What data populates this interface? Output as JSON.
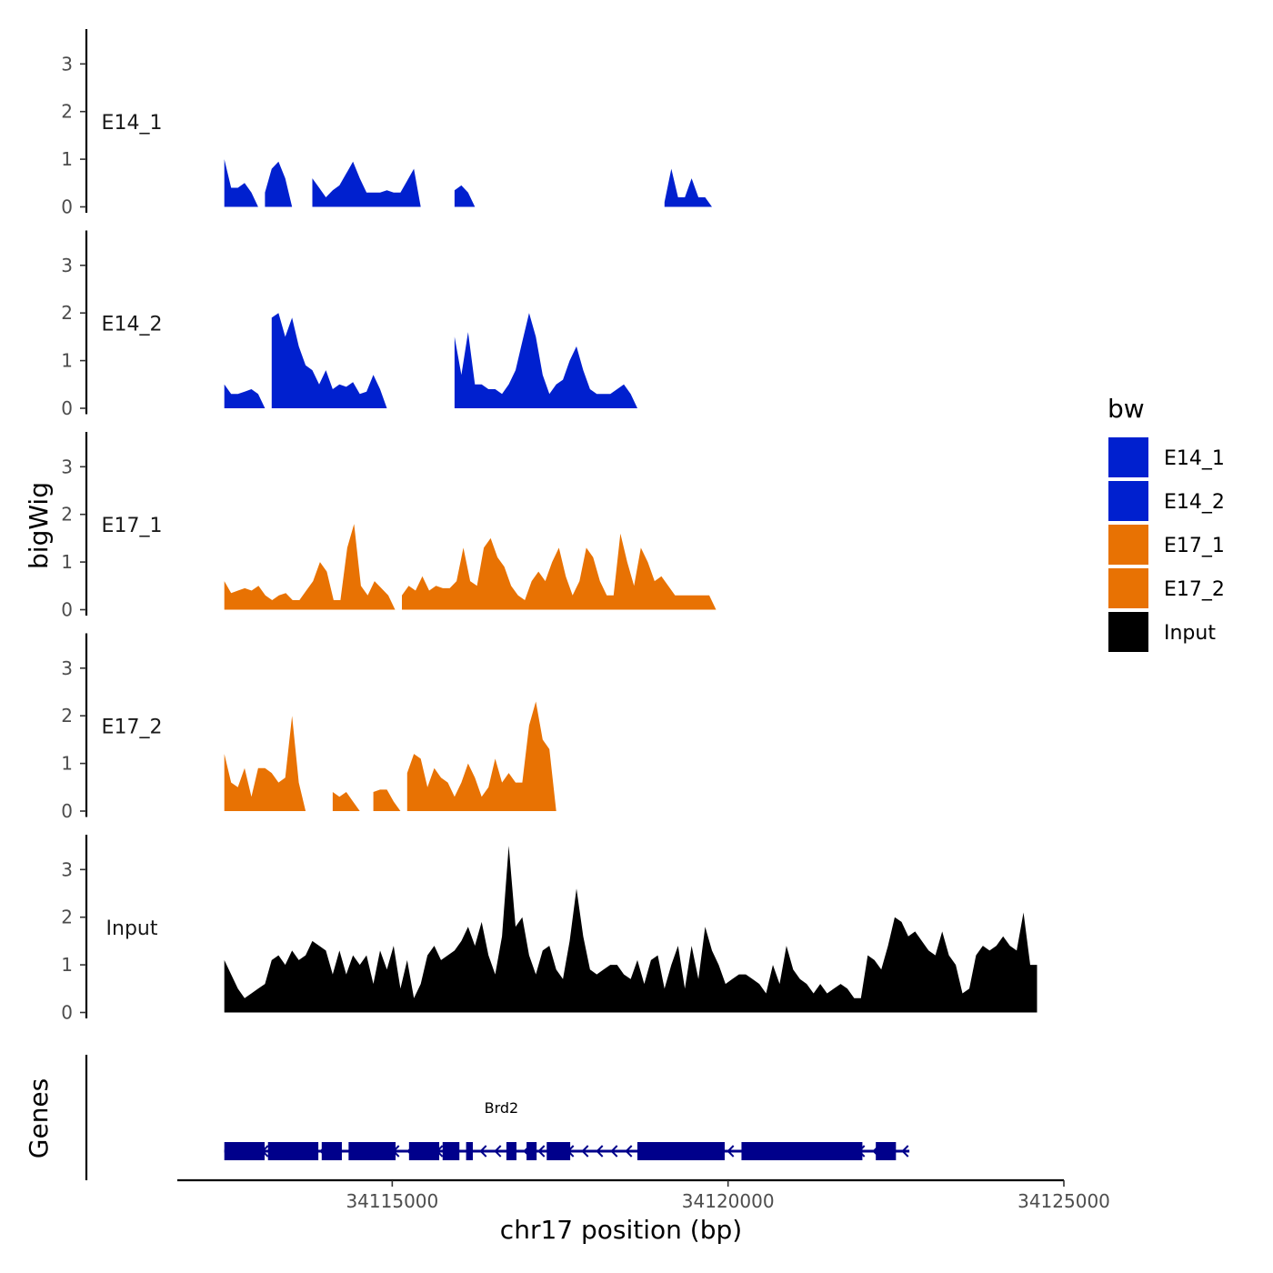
{
  "chart_data": {
    "type": "area",
    "y_axis_title": "bigWig",
    "genes_axis_title": "Genes",
    "x_axis_title": "chr17 position (bp)",
    "x_range": [
      34111800,
      34125000
    ],
    "data_x_extent": [
      34112500,
      34124600
    ],
    "x_ticks": [
      34115000,
      34120000,
      34125000
    ],
    "x_tick_labels": [
      "34115000",
      "34120000",
      "34125000"
    ],
    "y_range": [
      0,
      3.8
    ],
    "y_ticks": [
      0,
      1,
      2,
      3
    ],
    "y_tick_labels": [
      "0",
      "1",
      "2",
      "3"
    ],
    "legend": {
      "title": "bw",
      "entries": [
        {
          "label": "E14_1",
          "color": "#0020CF"
        },
        {
          "label": "E14_2",
          "color": "#0020CF"
        },
        {
          "label": "E17_1",
          "color": "#E87203"
        },
        {
          "label": "E17_2",
          "color": "#E87203"
        },
        {
          "label": "Input",
          "color": "#000000"
        }
      ]
    },
    "tracks": [
      {
        "name": "E14_1",
        "color": "#0020CF",
        "resolution_bp": 100,
        "values": [
          1.0,
          0.4,
          0.4,
          0.5,
          0.3,
          0.0,
          0.3,
          0.8,
          0.95,
          0.6,
          0.0,
          0.0,
          0.0,
          0.6,
          0.4,
          0.2,
          0.35,
          0.45,
          0.7,
          0.95,
          0.6,
          0.3,
          0.3,
          0.3,
          0.35,
          0.3,
          0.3,
          0.55,
          0.8,
          0.0,
          0.0,
          0.0,
          0.0,
          0.0,
          0.35,
          0.45,
          0.3,
          0.0,
          0.0,
          0.0,
          0.0,
          0.0,
          0.0,
          0.0,
          0.0,
          0.0,
          0.0,
          0.0,
          0.0,
          0.0,
          0.0,
          0.0,
          0.0,
          0.0,
          0.0,
          0.0,
          0.0,
          0.0,
          0.0,
          0.0,
          0.0,
          0.0,
          0.0,
          0.0,
          0.0,
          0.1,
          0.8,
          0.2,
          0.2,
          0.6,
          0.2,
          0.2,
          0.0,
          0.0,
          0.0,
          0.0,
          0.0,
          0.0,
          0.0,
          0.0,
          0.0,
          0.0,
          0.0,
          0.0,
          0.0,
          0.0,
          0.0,
          0.0,
          0.0,
          0.0,
          0.0,
          0.0,
          0.0,
          0.0,
          0.0,
          0.0,
          0.0,
          0.0,
          0.0,
          0.0,
          0.0,
          0.0,
          0.0,
          0.0,
          0.0,
          0.0,
          0.0,
          0.0,
          0.0,
          0.0,
          0.0,
          0.0,
          0.0,
          0.0,
          0.0,
          0.0,
          0.0,
          0.0,
          0.0,
          0.0,
          0.0
        ]
      },
      {
        "name": "E14_2",
        "color": "#0020CF",
        "resolution_bp": 100,
        "values": [
          0.5,
          0.3,
          0.3,
          0.35,
          0.4,
          0.3,
          0.0,
          1.9,
          2.0,
          1.5,
          1.9,
          1.3,
          0.9,
          0.8,
          0.5,
          0.8,
          0.4,
          0.5,
          0.45,
          0.55,
          0.3,
          0.35,
          0.7,
          0.4,
          0.0,
          0.0,
          0.0,
          0.0,
          0.0,
          0.0,
          0.0,
          0.0,
          0.0,
          0.0,
          1.5,
          0.7,
          1.6,
          0.5,
          0.5,
          0.4,
          0.4,
          0.3,
          0.5,
          0.8,
          1.4,
          2.0,
          1.5,
          0.7,
          0.3,
          0.5,
          0.6,
          1.0,
          1.3,
          0.8,
          0.4,
          0.3,
          0.3,
          0.3,
          0.4,
          0.5,
          0.3,
          0.0,
          0.0,
          0.0,
          0.0,
          0.0,
          0.0,
          0.0,
          0.0,
          0.0,
          0.0,
          0.0,
          0.0,
          0.0,
          0.0,
          0.0,
          0.0,
          0.0,
          0.0,
          0.0,
          0.0,
          0.0,
          0.0,
          0.0,
          0.0,
          0.0,
          0.0,
          0.0,
          0.0,
          0.0,
          0.0,
          0.0,
          0.0,
          0.0,
          0.0,
          0.0,
          0.0,
          0.0,
          0.0,
          0.0,
          0.0,
          0.0,
          0.0,
          0.0,
          0.0,
          0.0,
          0.0,
          0.0,
          0.0,
          0.0,
          0.0,
          0.0,
          0.0,
          0.0,
          0.0,
          0.0,
          0.0,
          0.0,
          0.0,
          0.0,
          0.0
        ]
      },
      {
        "name": "E17_1",
        "color": "#E87203",
        "resolution_bp": 100,
        "values": [
          0.6,
          0.35,
          0.4,
          0.45,
          0.4,
          0.5,
          0.3,
          0.2,
          0.3,
          0.35,
          0.2,
          0.2,
          0.4,
          0.6,
          1.0,
          0.8,
          0.2,
          0.2,
          1.3,
          1.8,
          0.5,
          0.3,
          0.6,
          0.45,
          0.3,
          0.0,
          0.3,
          0.5,
          0.4,
          0.7,
          0.4,
          0.5,
          0.45,
          0.45,
          0.6,
          1.3,
          0.6,
          0.5,
          1.3,
          1.5,
          1.1,
          0.9,
          0.5,
          0.3,
          0.2,
          0.6,
          0.8,
          0.6,
          1.0,
          1.3,
          0.7,
          0.3,
          0.6,
          1.3,
          1.1,
          0.6,
          0.3,
          0.3,
          1.6,
          1.0,
          0.5,
          1.3,
          1.0,
          0.6,
          0.7,
          0.5,
          0.3,
          0.3,
          0.3,
          0.3,
          0.3,
          0.3,
          0.0,
          0.0,
          0.0,
          0.0,
          0.0,
          0.0,
          0.0,
          0.0,
          0.0,
          0.0,
          0.0,
          0.0,
          0.0,
          0.0,
          0.0,
          0.0,
          0.0,
          0.0,
          0.0,
          0.0,
          0.0,
          0.0,
          0.0,
          0.0,
          0.0,
          0.0,
          0.0,
          0.0,
          0.0,
          0.0,
          0.0,
          0.0,
          0.0,
          0.0,
          0.0,
          0.0,
          0.0,
          0.0,
          0.0,
          0.0,
          0.0,
          0.0,
          0.0,
          0.0,
          0.0,
          0.0,
          0.0,
          0.0
        ]
      },
      {
        "name": "E17_2",
        "color": "#E87203",
        "resolution_bp": 100,
        "values": [
          1.2,
          0.6,
          0.5,
          0.9,
          0.3,
          0.9,
          0.9,
          0.8,
          0.6,
          0.7,
          2.0,
          0.6,
          0.0,
          0.0,
          0.0,
          0.0,
          0.4,
          0.3,
          0.4,
          0.2,
          0.0,
          0.0,
          0.4,
          0.45,
          0.45,
          0.2,
          0.0,
          0.8,
          1.2,
          1.1,
          0.5,
          0.9,
          0.7,
          0.6,
          0.3,
          0.6,
          1.0,
          0.7,
          0.3,
          0.5,
          1.1,
          0.6,
          0.8,
          0.6,
          0.6,
          1.8,
          2.3,
          1.5,
          1.3,
          0.0,
          0.0,
          0.0,
          0.0,
          0.0,
          0.0,
          0.0,
          0.0,
          0.0,
          0.0,
          0.0,
          0.0,
          0.0,
          0.0,
          0.0,
          0.0,
          0.0,
          0.0,
          0.0,
          0.0,
          0.0,
          0.0,
          0.0,
          0.0,
          0.0,
          0.0,
          0.0,
          0.0,
          0.0,
          0.0,
          0.0,
          0.0,
          0.0,
          0.0,
          0.0,
          0.0,
          0.0,
          0.0,
          0.0,
          0.0,
          0.0,
          0.0,
          0.0,
          0.0,
          0.0,
          0.0,
          0.0,
          0.0,
          0.0,
          0.0,
          0.0,
          0.0,
          0.0,
          0.0,
          0.0,
          0.0,
          0.0,
          0.0,
          0.0,
          0.0,
          0.0,
          0.0,
          0.0,
          0.0,
          0.0,
          0.0,
          0.0,
          0.0,
          0.0,
          0.0,
          0.0,
          0.0
        ]
      },
      {
        "name": "Input",
        "color": "#000000",
        "resolution_bp": 100,
        "values": [
          1.1,
          0.8,
          0.5,
          0.3,
          0.4,
          0.5,
          0.6,
          1.1,
          1.2,
          1.0,
          1.3,
          1.1,
          1.2,
          1.5,
          1.4,
          1.3,
          0.8,
          1.3,
          0.8,
          1.2,
          1.0,
          1.2,
          0.6,
          1.3,
          0.9,
          1.4,
          0.5,
          1.1,
          0.3,
          0.6,
          1.2,
          1.4,
          1.1,
          1.2,
          1.3,
          1.5,
          1.8,
          1.4,
          1.9,
          1.2,
          0.8,
          1.6,
          3.5,
          1.8,
          2.0,
          1.2,
          0.8,
          1.3,
          1.4,
          0.9,
          0.7,
          1.5,
          2.6,
          1.6,
          0.9,
          0.8,
          0.9,
          1.0,
          1.0,
          0.8,
          0.7,
          1.1,
          0.6,
          1.1,
          1.2,
          0.5,
          1.0,
          1.4,
          0.5,
          1.4,
          0.7,
          1.8,
          1.3,
          1.0,
          0.6,
          0.7,
          0.8,
          0.8,
          0.7,
          0.6,
          0.4,
          1.0,
          0.6,
          1.4,
          0.9,
          0.7,
          0.6,
          0.4,
          0.6,
          0.4,
          0.5,
          0.6,
          0.5,
          0.3,
          0.3,
          1.2,
          1.1,
          0.9,
          1.4,
          2.0,
          1.9,
          1.6,
          1.7,
          1.5,
          1.3,
          1.2,
          1.7,
          1.2,
          1.0,
          0.4,
          0.5,
          1.2,
          1.4,
          1.3,
          1.4,
          1.6,
          1.4,
          1.3,
          2.1,
          1.0,
          1.0
        ]
      }
    ],
    "genes": [
      {
        "name": "Brd2",
        "start": 34112500,
        "end": 34122700,
        "strand": "-",
        "color": "#00008B",
        "exons": [
          [
            34112500,
            34113100
          ],
          [
            34113150,
            34113900
          ],
          [
            34113950,
            34114250
          ],
          [
            34114350,
            34115050
          ],
          [
            34115250,
            34115700
          ],
          [
            34115750,
            34116000
          ],
          [
            34116100,
            34116200
          ],
          [
            34116700,
            34116850
          ],
          [
            34117000,
            34117150
          ],
          [
            34117300,
            34117650
          ],
          [
            34118650,
            34119950
          ],
          [
            34120200,
            34122000
          ],
          [
            34122200,
            34122500
          ]
        ]
      }
    ]
  }
}
